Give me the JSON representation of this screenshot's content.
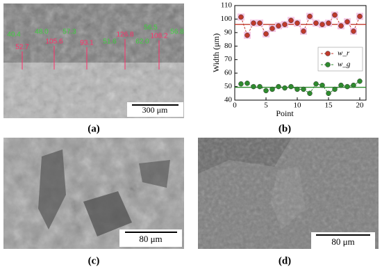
{
  "panels": [
    {
      "label": "(a)",
      "scale_bar": "300 μm",
      "annotations": {
        "green": [
          "40.4",
          "48.0",
          "57.3",
          "51.6",
          "62.0",
          "56.5",
          "56.8"
        ],
        "red": [
          "52.7",
          "105.6",
          "93.1",
          "126.8",
          "108.2"
        ]
      }
    },
    {
      "label": "(b)"
    },
    {
      "label": "(c)",
      "scale_bar": "80 μm"
    },
    {
      "label": "(d)",
      "scale_bar": "80 μm"
    }
  ],
  "chart_data": {
    "type": "line",
    "x_label": "Point",
    "y_label": "Width (μm)",
    "xlim": [
      0,
      21
    ],
    "xticks": [
      0,
      5,
      10,
      15,
      20
    ],
    "ylim": [
      40,
      110
    ],
    "yticks": [
      40,
      50,
      60,
      70,
      80,
      90,
      100,
      110
    ],
    "x": [
      1,
      2,
      3,
      4,
      5,
      6,
      7,
      8,
      9,
      10,
      11,
      12,
      13,
      14,
      15,
      16,
      17,
      18,
      19,
      20
    ],
    "legend": "right",
    "series": [
      {
        "name": "w_r",
        "color": "#c0392b",
        "mean": 96,
        "values": [
          101.5,
          88,
          97,
          97,
          89,
          93,
          95,
          96,
          99,
          97,
          91,
          102,
          97,
          96,
          97,
          103,
          95,
          98,
          91,
          102
        ]
      },
      {
        "name": "w_g",
        "color": "#2e8b2e",
        "mean": 49.5,
        "values": [
          52,
          52.5,
          50,
          50,
          47,
          48,
          50,
          49,
          50,
          48,
          48,
          45,
          52,
          51,
          45,
          48,
          51,
          50,
          51,
          54
        ]
      }
    ]
  }
}
